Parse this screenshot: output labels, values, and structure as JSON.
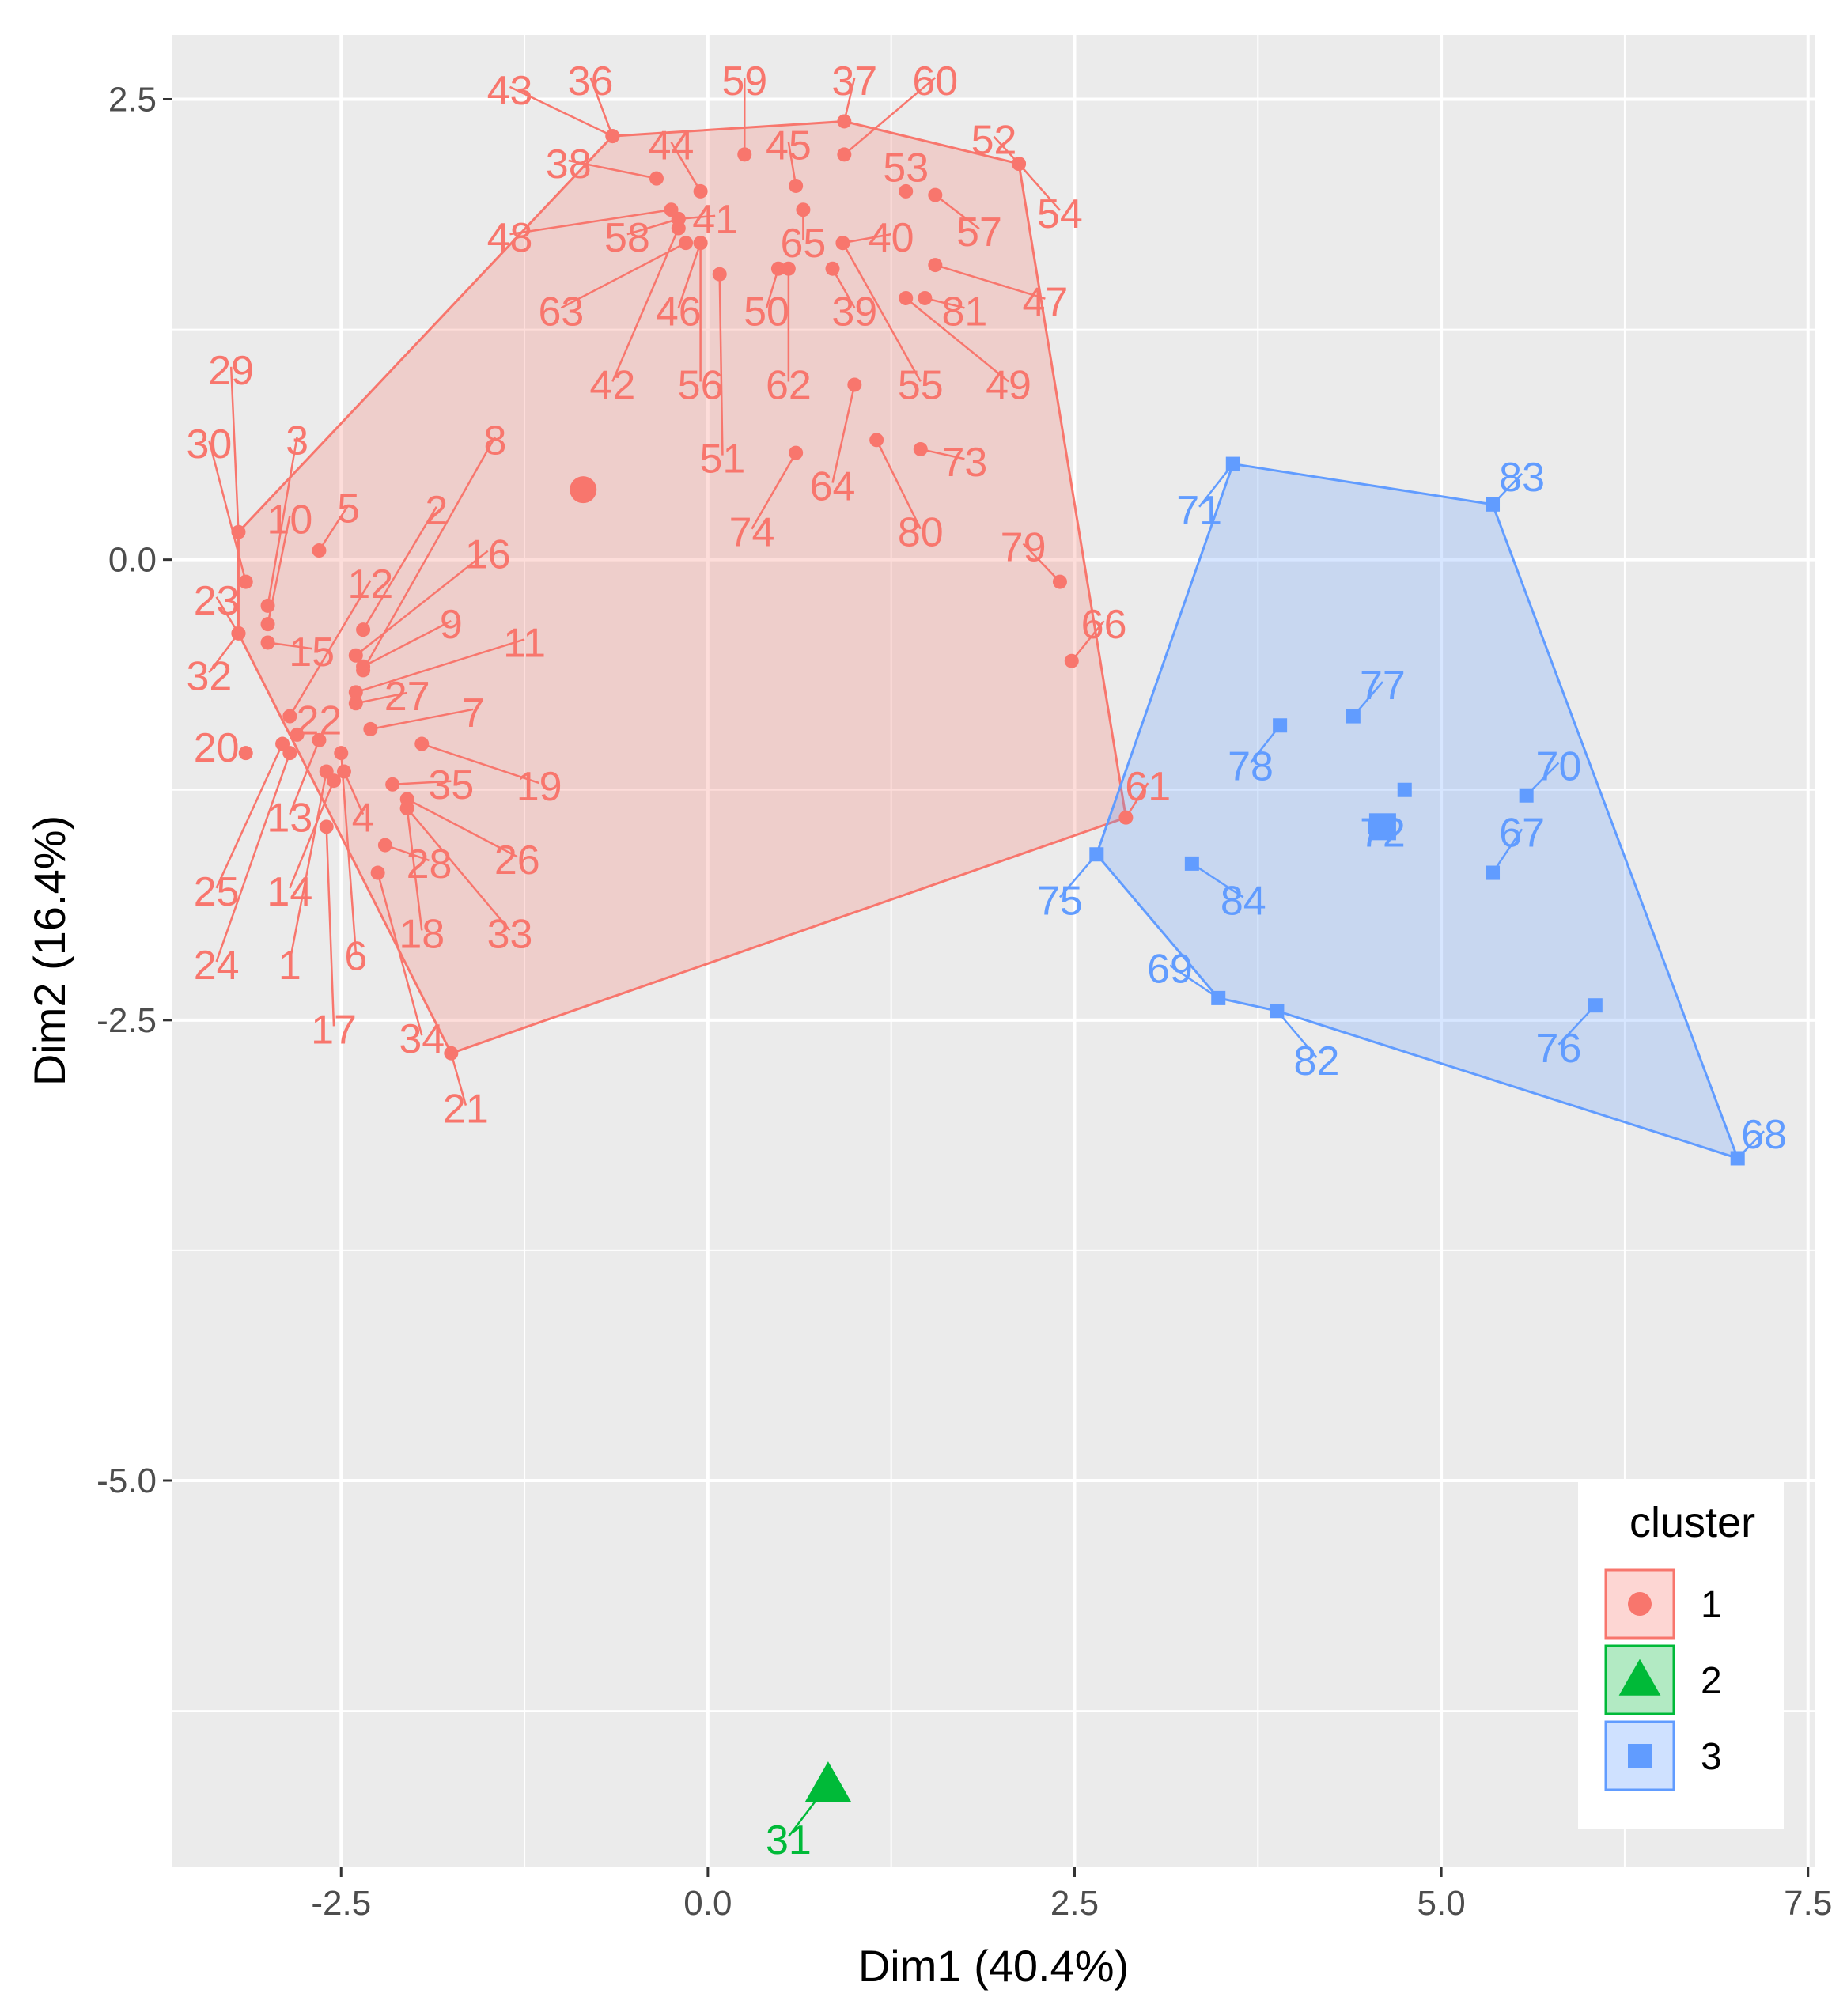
{
  "chart_data": {
    "type": "scatter",
    "title": "",
    "xlabel": "Dim1 (40.4%)",
    "ylabel": "Dim2 (16.4%)",
    "xlim": [
      -3.65,
      7.55
    ],
    "ylim": [
      -7.1,
      2.85
    ],
    "x_ticks": [
      -2.5,
      0.0,
      2.5,
      5.0,
      7.5
    ],
    "x_tick_labels": [
      "-2.5",
      "0.0",
      "2.5",
      "5.0",
      "7.5"
    ],
    "y_ticks": [
      2.5,
      0.0,
      -2.5,
      -5.0
    ],
    "y_tick_labels": [
      "2.5",
      "0.0",
      "-2.5",
      "-5.0"
    ],
    "grid": true,
    "colors": {
      "cluster1": "#F8766D",
      "cluster2": "#00BA38",
      "cluster3": "#619CFF",
      "panel": "#EBEBEB",
      "grid": "#FFFFFF",
      "axis_text": "#4D4D4D"
    },
    "legend": {
      "title": "cluster",
      "position": "bottom-right",
      "entries": [
        {
          "label": "1",
          "shape": "circle",
          "color": "#F8766D"
        },
        {
          "label": "2",
          "shape": "triangle",
          "color": "#00BA38"
        },
        {
          "label": "3",
          "shape": "square",
          "color": "#619CFF"
        }
      ]
    },
    "series": [
      {
        "name": "1",
        "shape": "circle",
        "color": "#F8766D",
        "centroid": [
          -0.85,
          0.38
        ],
        "hull": [
          "21",
          "32",
          "23",
          "29",
          "43",
          "37",
          "52",
          "54",
          "61"
        ],
        "points": [
          {
            "label": "1",
            "x": -2.6,
            "y": -1.15,
            "lx": -2.85,
            "ly": -2.2
          },
          {
            "label": "2",
            "x": -2.35,
            "y": -0.38,
            "lx": -1.85,
            "ly": 0.27
          },
          {
            "label": "3",
            "x": -3.0,
            "y": -0.25,
            "lx": -2.8,
            "ly": 0.65
          },
          {
            "label": "5",
            "x": -2.65,
            "y": 0.05,
            "lx": -2.45,
            "ly": 0.28
          },
          {
            "label": "6",
            "x": -2.5,
            "y": -1.05,
            "lx": -2.4,
            "ly": -2.15
          },
          {
            "label": "7",
            "x": -2.3,
            "y": -0.92,
            "lx": -1.6,
            "ly": -0.83
          },
          {
            "label": "8",
            "x": -2.35,
            "y": -0.6,
            "lx": -1.45,
            "ly": 0.65
          },
          {
            "label": "9",
            "x": -2.35,
            "y": -0.58,
            "lx": -1.75,
            "ly": -0.35
          },
          {
            "label": "10",
            "x": -3.0,
            "y": -0.35,
            "lx": -2.85,
            "ly": 0.22
          },
          {
            "label": "11",
            "x": -2.4,
            "y": -0.72,
            "lx": -1.25,
            "ly": -0.45
          },
          {
            "label": "12",
            "x": -2.85,
            "y": -0.85,
            "lx": -2.3,
            "ly": -0.13
          },
          {
            "label": "13",
            "x": -2.65,
            "y": -0.98,
            "lx": -2.85,
            "ly": -1.4
          },
          {
            "label": "4",
            "x": -2.48,
            "y": -1.15,
            "lx": -2.35,
            "ly": -1.4
          },
          {
            "label": "14",
            "x": -2.55,
            "y": -1.2,
            "lx": -2.85,
            "ly": -1.8
          },
          {
            "label": "15",
            "x": -3.0,
            "y": -0.45,
            "lx": -2.7,
            "ly": -0.5
          },
          {
            "label": "16",
            "x": -2.4,
            "y": -0.52,
            "lx": -1.5,
            "ly": 0.03
          },
          {
            "label": "17",
            "x": -2.6,
            "y": -1.45,
            "lx": -2.55,
            "ly": -2.55
          },
          {
            "label": "18",
            "x": -2.05,
            "y": -1.35,
            "lx": -1.95,
            "ly": -2.03
          },
          {
            "label": "19",
            "x": -1.95,
            "y": -1.0,
            "lx": -1.15,
            "ly": -1.23
          },
          {
            "label": "20",
            "x": -3.15,
            "y": -1.05,
            "lx": -3.35,
            "ly": -1.02
          },
          {
            "label": "21",
            "x": -1.75,
            "y": -2.68,
            "lx": -1.65,
            "ly": -2.98
          },
          {
            "label": "22",
            "x": -2.8,
            "y": -0.95,
            "lx": -2.65,
            "ly": -0.87
          },
          {
            "label": "23",
            "x": -3.2,
            "y": -0.4,
            "lx": -3.35,
            "ly": -0.22
          },
          {
            "label": "24",
            "x": -2.85,
            "y": -1.05,
            "lx": -3.35,
            "ly": -2.2
          },
          {
            "label": "25",
            "x": -2.9,
            "y": -1.0,
            "lx": -3.35,
            "ly": -1.8
          },
          {
            "label": "26",
            "x": -2.05,
            "y": -1.3,
            "lx": -1.3,
            "ly": -1.63
          },
          {
            "label": "27",
            "x": -2.4,
            "y": -0.78,
            "lx": -2.05,
            "ly": -0.74
          },
          {
            "label": "28",
            "x": -2.2,
            "y": -1.55,
            "lx": -1.9,
            "ly": -1.65
          },
          {
            "label": "29",
            "x": -3.2,
            "y": 0.15,
            "lx": -3.25,
            "ly": 1.03
          },
          {
            "label": "30",
            "x": -3.15,
            "y": -0.12,
            "lx": -3.4,
            "ly": 0.63
          },
          {
            "label": "32",
            "x": -3.2,
            "y": -0.4,
            "lx": -3.4,
            "ly": -0.63
          },
          {
            "label": "33",
            "x": -2.05,
            "y": -1.35,
            "lx": -1.35,
            "ly": -2.03
          },
          {
            "label": "34",
            "x": -2.25,
            "y": -1.7,
            "lx": -1.95,
            "ly": -2.6
          },
          {
            "label": "35",
            "x": -2.15,
            "y": -1.22,
            "lx": -1.75,
            "ly": -1.22
          },
          {
            "label": "36",
            "x": -0.65,
            "y": 2.3,
            "lx": -0.8,
            "ly": 2.6
          },
          {
            "label": "37",
            "x": 0.93,
            "y": 2.38,
            "lx": 1.0,
            "ly": 2.6
          },
          {
            "label": "38",
            "x": -0.35,
            "y": 2.07,
            "lx": -0.95,
            "ly": 2.15
          },
          {
            "label": "39",
            "x": 0.85,
            "y": 1.58,
            "lx": 1.0,
            "ly": 1.35
          },
          {
            "label": "40",
            "x": 0.92,
            "y": 1.72,
            "lx": 1.25,
            "ly": 1.75
          },
          {
            "label": "41",
            "x": -0.2,
            "y": 1.85,
            "lx": 0.05,
            "ly": 1.85
          },
          {
            "label": "42",
            "x": -0.2,
            "y": 1.8,
            "lx": -0.65,
            "ly": 0.95
          },
          {
            "label": "43",
            "x": -0.65,
            "y": 2.3,
            "lx": -1.35,
            "ly": 2.55
          },
          {
            "label": "44",
            "x": -0.05,
            "y": 2.0,
            "lx": -0.25,
            "ly": 2.25
          },
          {
            "label": "45",
            "x": 0.6,
            "y": 2.03,
            "lx": 0.55,
            "ly": 2.25
          },
          {
            "label": "46",
            "x": -0.05,
            "y": 1.72,
            "lx": -0.2,
            "ly": 1.35
          },
          {
            "label": "47",
            "x": 1.55,
            "y": 1.6,
            "lx": 2.3,
            "ly": 1.4
          },
          {
            "label": "48",
            "x": -0.25,
            "y": 1.9,
            "lx": -1.35,
            "ly": 1.75
          },
          {
            "label": "49",
            "x": 1.35,
            "y": 1.42,
            "lx": 2.05,
            "ly": 0.95
          },
          {
            "label": "50",
            "x": 0.48,
            "y": 1.58,
            "lx": 0.4,
            "ly": 1.35
          },
          {
            "label": "51",
            "x": 0.08,
            "y": 1.55,
            "lx": 0.1,
            "ly": 0.55
          },
          {
            "label": "52",
            "x": 2.12,
            "y": 2.15,
            "lx": 1.95,
            "ly": 2.28
          },
          {
            "label": "53",
            "x": 1.35,
            "y": 2.0,
            "lx": 1.35,
            "ly": 2.13
          },
          {
            "label": "54",
            "x": 2.12,
            "y": 2.15,
            "lx": 2.4,
            "ly": 1.88
          },
          {
            "label": "55",
            "x": 0.92,
            "y": 1.72,
            "lx": 1.45,
            "ly": 0.95
          },
          {
            "label": "56",
            "x": -0.05,
            "y": 1.72,
            "lx": -0.05,
            "ly": 0.95
          },
          {
            "label": "57",
            "x": 1.55,
            "y": 1.98,
            "lx": 1.85,
            "ly": 1.78
          },
          {
            "label": "58",
            "x": -0.2,
            "y": 1.85,
            "lx": -0.55,
            "ly": 1.75
          },
          {
            "label": "59",
            "x": 0.25,
            "y": 2.2,
            "lx": 0.25,
            "ly": 2.6
          },
          {
            "label": "60",
            "x": 0.93,
            "y": 2.2,
            "lx": 1.55,
            "ly": 2.6
          },
          {
            "label": "61",
            "x": 2.85,
            "y": -1.4,
            "lx": 3.0,
            "ly": -1.23
          },
          {
            "label": "62",
            "x": 0.55,
            "y": 1.58,
            "lx": 0.55,
            "ly": 0.95
          },
          {
            "label": "63",
            "x": -0.15,
            "y": 1.72,
            "lx": -1.0,
            "ly": 1.35
          },
          {
            "label": "64",
            "x": 1.0,
            "y": 0.95,
            "lx": 0.85,
            "ly": 0.4
          },
          {
            "label": "65",
            "x": 0.65,
            "y": 1.9,
            "lx": 0.65,
            "ly": 1.72
          },
          {
            "label": "66",
            "x": 2.48,
            "y": -0.55,
            "lx": 2.7,
            "ly": -0.35
          },
          {
            "label": "73",
            "x": 1.45,
            "y": 0.6,
            "lx": 1.75,
            "ly": 0.53
          },
          {
            "label": "74",
            "x": 0.6,
            "y": 0.58,
            "lx": 0.3,
            "ly": 0.15
          },
          {
            "label": "79",
            "x": 2.4,
            "y": -0.12,
            "lx": 2.15,
            "ly": 0.07
          },
          {
            "label": "80",
            "x": 1.15,
            "y": 0.65,
            "lx": 1.45,
            "ly": 0.15
          },
          {
            "label": "81",
            "x": 1.48,
            "y": 1.42,
            "lx": 1.75,
            "ly": 1.35
          }
        ]
      },
      {
        "name": "2",
        "shape": "triangle",
        "color": "#00BA38",
        "centroid": [
          0.82,
          -6.65
        ],
        "hull": [],
        "points": [
          {
            "label": "31",
            "x": 0.82,
            "y": -6.65,
            "lx": 0.55,
            "ly": -6.95
          }
        ]
      },
      {
        "name": "3",
        "shape": "square",
        "color": "#619CFF",
        "centroid": [
          4.6,
          -1.45
        ],
        "hull": [
          "71",
          "83",
          "68",
          "82",
          "69",
          "75"
        ],
        "points": [
          {
            "label": "67",
            "x": 5.35,
            "y": -1.7,
            "lx": 5.55,
            "ly": -1.48
          },
          {
            "label": "68",
            "x": 7.02,
            "y": -3.25,
            "lx": 7.2,
            "ly": -3.12
          },
          {
            "label": "69",
            "x": 3.48,
            "y": -2.38,
            "lx": 3.15,
            "ly": -2.22
          },
          {
            "label": "70",
            "x": 5.58,
            "y": -1.28,
            "lx": 5.8,
            "ly": -1.12
          },
          {
            "label": "71",
            "x": 3.58,
            "y": 0.52,
            "lx": 3.35,
            "ly": 0.27
          },
          {
            "label": "72",
            "x": 4.6,
            "y": -1.45,
            "lx": 4.6,
            "ly": -1.48
          },
          {
            "label": "75",
            "x": 2.65,
            "y": -1.6,
            "lx": 2.4,
            "ly": -1.85
          },
          {
            "label": "76",
            "x": 6.05,
            "y": -2.42,
            "lx": 5.8,
            "ly": -2.65
          },
          {
            "label": "77",
            "x": 4.4,
            "y": -0.85,
            "lx": 4.6,
            "ly": -0.68
          },
          {
            "label": "78",
            "x": 3.9,
            "y": -0.9,
            "lx": 3.7,
            "ly": -1.12
          },
          {
            "label": "82",
            "x": 3.88,
            "y": -2.45,
            "lx": 4.15,
            "ly": -2.72
          },
          {
            "label": "83",
            "x": 5.35,
            "y": 0.3,
            "lx": 5.55,
            "ly": 0.45
          },
          {
            "label": "84",
            "x": 3.3,
            "y": -1.65,
            "lx": 3.65,
            "ly": -1.85
          },
          {
            "label": "",
            "x": 4.75,
            "y": -1.25,
            "lx": 4.75,
            "ly": -1.25
          },
          {
            "label": "",
            "x": 4.55,
            "y": -1.45,
            "lx": 4.55,
            "ly": -1.45
          }
        ]
      }
    ]
  }
}
